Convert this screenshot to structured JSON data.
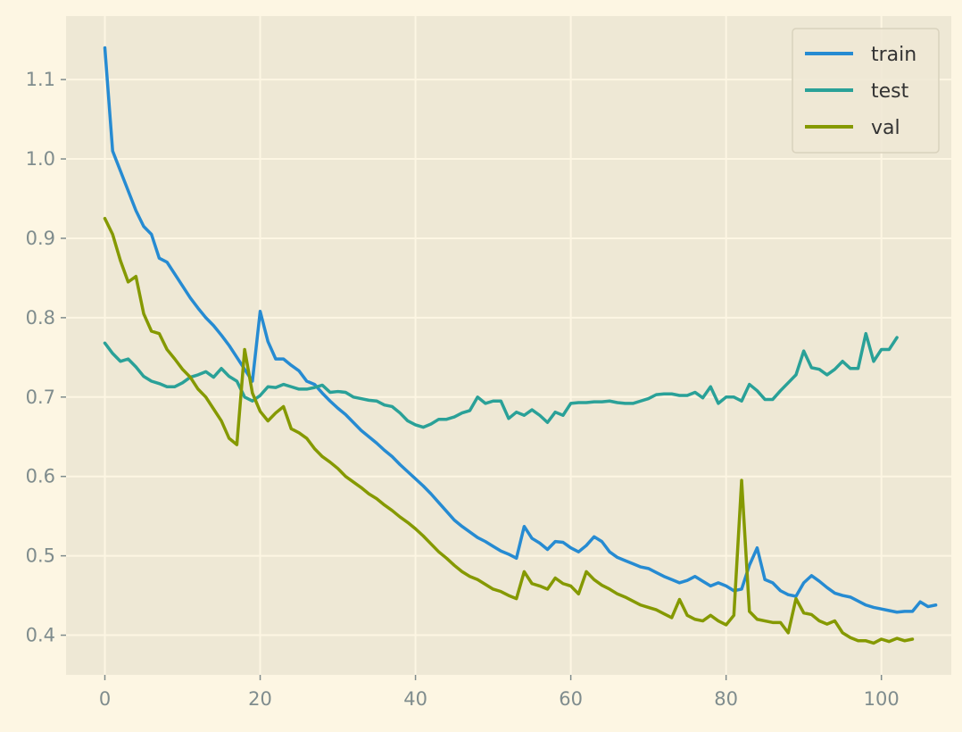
{
  "chart_data": {
    "type": "line",
    "title": "",
    "xlabel": "",
    "ylabel": "",
    "xlim": [
      -5,
      109
    ],
    "ylim": [
      0.35,
      1.18
    ],
    "xticks": [
      0,
      20,
      40,
      60,
      80,
      100
    ],
    "yticks": [
      0.4,
      0.5,
      0.6,
      0.7,
      0.8,
      0.9,
      1.0,
      1.1
    ],
    "grid": true,
    "legend_position": "top-right",
    "colors": {
      "figure_bg": "#fdf6e3",
      "axes_bg": "#eee8d5",
      "grid": "#fdf6e3",
      "tick_text": "#7f8c8d"
    },
    "series": [
      {
        "name": "train",
        "color": "#268bd2",
        "values": [
          1.14,
          1.01,
          0.985,
          0.96,
          0.935,
          0.915,
          0.905,
          0.875,
          0.87,
          0.855,
          0.84,
          0.825,
          0.812,
          0.8,
          0.79,
          0.778,
          0.765,
          0.75,
          0.735,
          0.72,
          0.808,
          0.77,
          0.748,
          0.748,
          0.74,
          0.733,
          0.72,
          0.716,
          0.705,
          0.695,
          0.686,
          0.678,
          0.668,
          0.658,
          0.65,
          0.642,
          0.633,
          0.625,
          0.615,
          0.606,
          0.597,
          0.588,
          0.578,
          0.567,
          0.556,
          0.545,
          0.537,
          0.53,
          0.523,
          0.518,
          0.512,
          0.506,
          0.502,
          0.497,
          0.537,
          0.522,
          0.516,
          0.508,
          0.518,
          0.517,
          0.51,
          0.505,
          0.513,
          0.524,
          0.518,
          0.505,
          0.498,
          0.494,
          0.49,
          0.486,
          0.484,
          0.479,
          0.474,
          0.47,
          0.466,
          0.469,
          0.474,
          0.468,
          0.462,
          0.466,
          0.462,
          0.456,
          0.458,
          0.488,
          0.51,
          0.47,
          0.466,
          0.456,
          0.451,
          0.449,
          0.466,
          0.475,
          0.468,
          0.46,
          0.453,
          0.45,
          0.448,
          0.443,
          0.438,
          0.435,
          0.433,
          0.431,
          0.429,
          0.43,
          0.43,
          0.442,
          0.436,
          0.438
        ]
      },
      {
        "name": "test",
        "color": "#2aa198",
        "values": [
          0.768,
          0.755,
          0.745,
          0.748,
          0.738,
          0.726,
          0.72,
          0.717,
          0.713,
          0.713,
          0.718,
          0.725,
          0.728,
          0.732,
          0.725,
          0.736,
          0.726,
          0.72,
          0.7,
          0.695,
          0.702,
          0.713,
          0.712,
          0.716,
          0.713,
          0.71,
          0.71,
          0.712,
          0.715,
          0.706,
          0.707,
          0.706,
          0.7,
          0.698,
          0.696,
          0.695,
          0.69,
          0.688,
          0.68,
          0.67,
          0.665,
          0.662,
          0.666,
          0.672,
          0.672,
          0.675,
          0.68,
          0.683,
          0.7,
          0.692,
          0.695,
          0.695,
          0.673,
          0.681,
          0.677,
          0.684,
          0.677,
          0.668,
          0.681,
          0.677,
          0.692,
          0.693,
          0.693,
          0.694,
          0.694,
          0.695,
          0.693,
          0.692,
          0.692,
          0.695,
          0.698,
          0.703,
          0.704,
          0.704,
          0.702,
          0.702,
          0.706,
          0.699,
          0.713,
          0.692,
          0.7,
          0.7,
          0.695,
          0.716,
          0.708,
          0.697,
          0.697,
          0.708,
          0.718,
          0.728,
          0.758,
          0.737,
          0.735,
          0.728,
          0.735,
          0.745,
          0.736,
          0.736,
          0.78,
          0.745,
          0.76,
          0.76,
          0.775
        ]
      },
      {
        "name": "val",
        "color": "#859900",
        "values": [
          0.925,
          0.905,
          0.872,
          0.845,
          0.852,
          0.805,
          0.783,
          0.78,
          0.76,
          0.748,
          0.735,
          0.725,
          0.71,
          0.7,
          0.685,
          0.67,
          0.648,
          0.64,
          0.76,
          0.705,
          0.682,
          0.67,
          0.68,
          0.688,
          0.66,
          0.655,
          0.648,
          0.635,
          0.625,
          0.618,
          0.61,
          0.6,
          0.593,
          0.586,
          0.578,
          0.572,
          0.564,
          0.557,
          0.549,
          0.542,
          0.534,
          0.525,
          0.515,
          0.505,
          0.497,
          0.488,
          0.48,
          0.474,
          0.47,
          0.464,
          0.458,
          0.455,
          0.45,
          0.446,
          0.48,
          0.465,
          0.462,
          0.458,
          0.472,
          0.465,
          0.462,
          0.452,
          0.48,
          0.47,
          0.463,
          0.458,
          0.452,
          0.448,
          0.443,
          0.438,
          0.435,
          0.432,
          0.427,
          0.422,
          0.445,
          0.425,
          0.42,
          0.418,
          0.425,
          0.418,
          0.413,
          0.425,
          0.595,
          0.43,
          0.42,
          0.418,
          0.416,
          0.416,
          0.403,
          0.446,
          0.428,
          0.426,
          0.418,
          0.414,
          0.418,
          0.403,
          0.397,
          0.393,
          0.393,
          0.39,
          0.395,
          0.392,
          0.396,
          0.393,
          0.395
        ]
      }
    ]
  }
}
